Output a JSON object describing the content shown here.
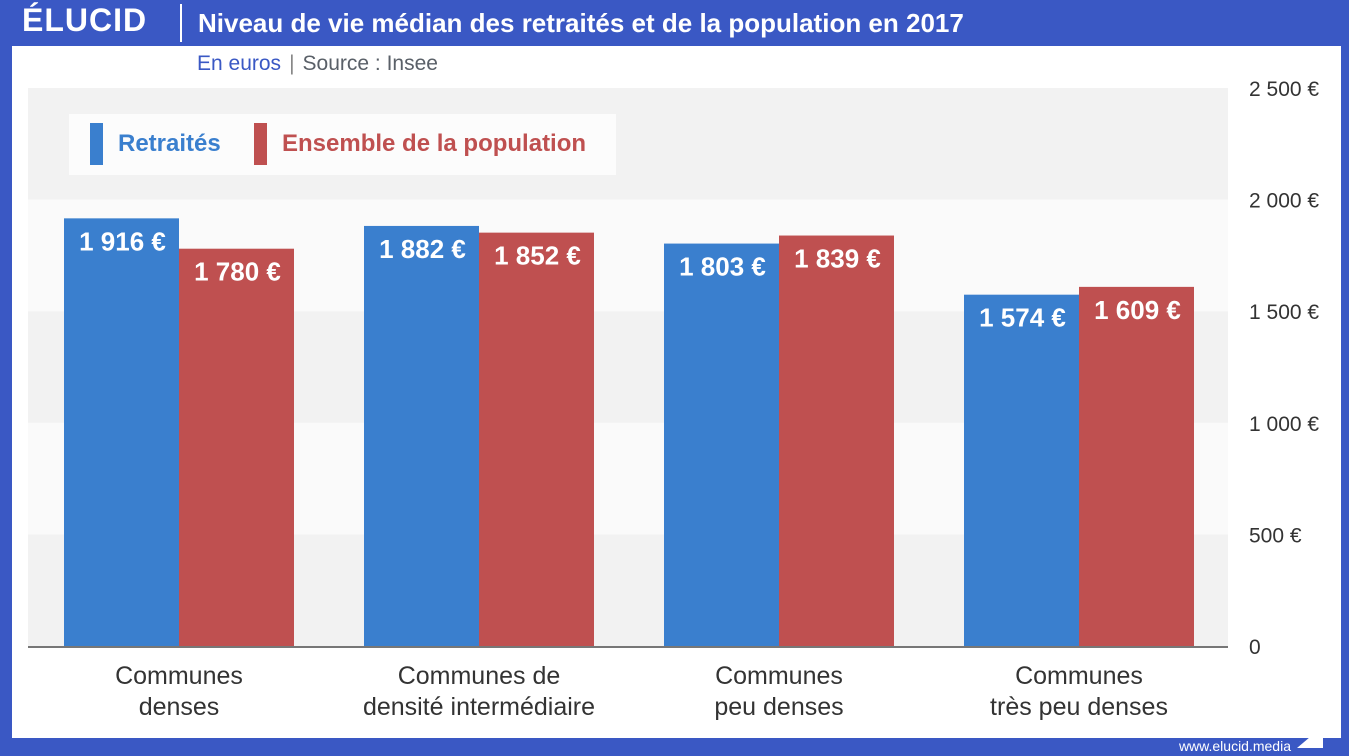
{
  "header": {
    "logo": "ÉLUCID",
    "title": "Niveau de vie médian des retraités et de la population en 2017"
  },
  "subtitle": {
    "unit": "En euros",
    "separator": "|",
    "source": "Source : Insee"
  },
  "footer": {
    "url": "www.elucid.media"
  },
  "colors": {
    "brand": "#3a58c4",
    "retraites": "#3a7fce",
    "population": "#bf5050"
  },
  "chart_data": {
    "type": "bar",
    "categories": [
      [
        "Communes",
        "denses"
      ],
      [
        "Communes de",
        "densité intermédiaire"
      ],
      [
        "Communes",
        "peu denses"
      ],
      [
        "Communes",
        "très peu denses"
      ]
    ],
    "series": [
      {
        "name": "Retraités",
        "color": "#3a7fce",
        "values": [
          1916,
          1882,
          1803,
          1574
        ],
        "labels": [
          "1 916 €",
          "1 882 €",
          "1 803 €",
          "1 574 €"
        ]
      },
      {
        "name": "Ensemble de la population",
        "color": "#bf5050",
        "values": [
          1780,
          1852,
          1839,
          1609
        ],
        "labels": [
          "1 780 €",
          "1 852 €",
          "1 839 €",
          "1 609 €"
        ]
      }
    ],
    "ylim": [
      0,
      2500
    ],
    "yticks": [
      0,
      500,
      1000,
      1500,
      2000,
      2500
    ],
    "ytick_labels": [
      "0",
      "500 €",
      "1 000 €",
      "1 500 €",
      "2 000 €",
      "2 500 €"
    ],
    "grid": "alternating bands",
    "legend_position": "top-left"
  }
}
